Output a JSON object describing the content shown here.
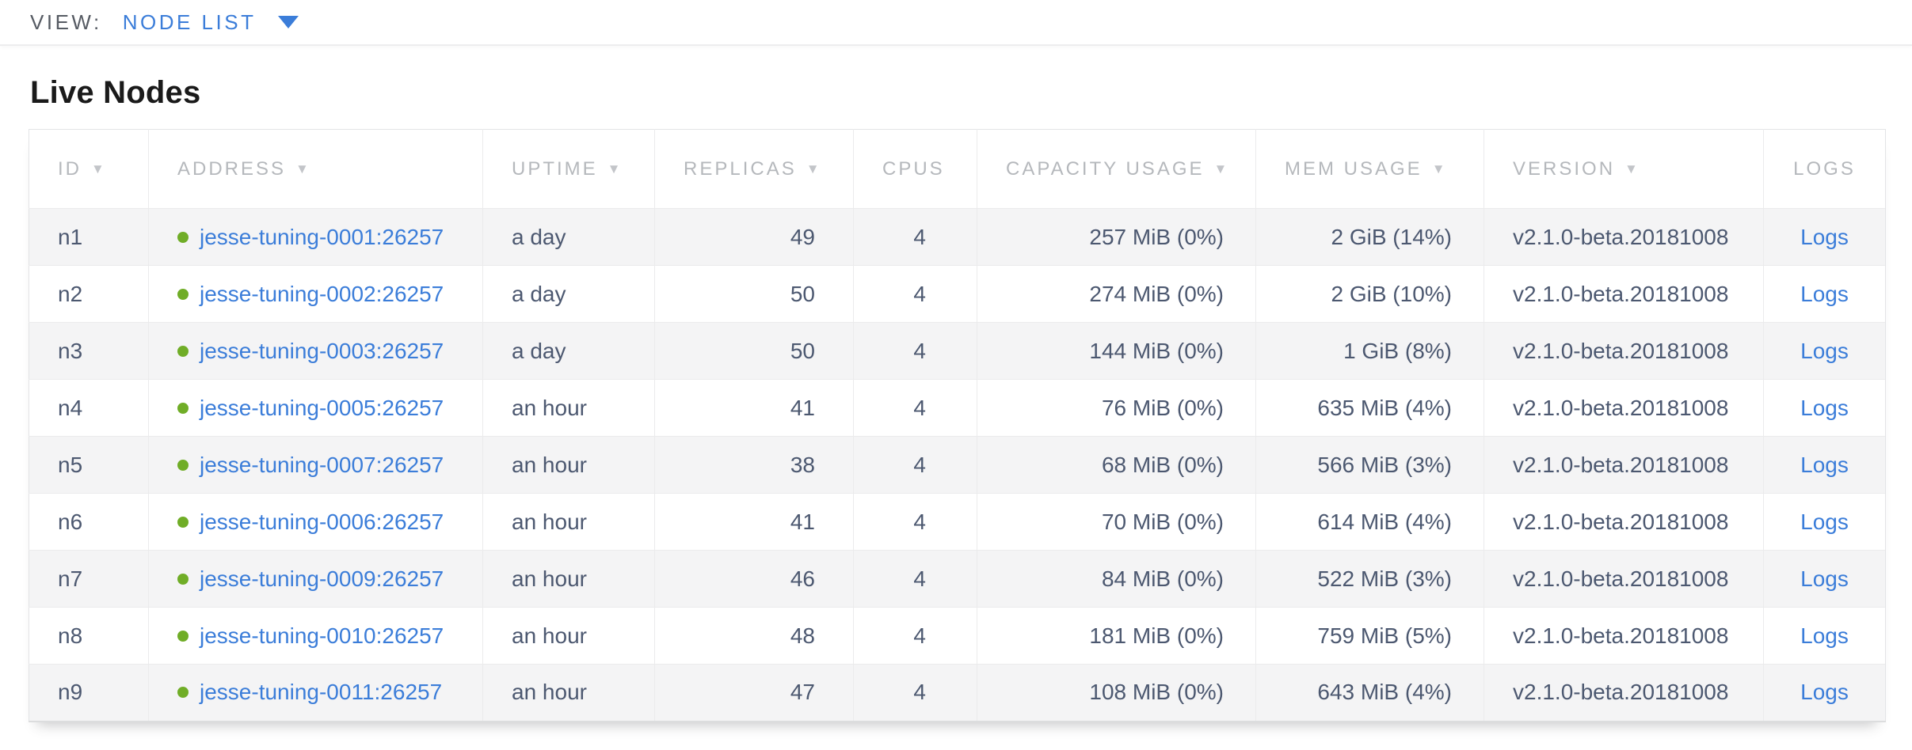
{
  "view_bar": {
    "label": "VIEW:",
    "selected_view": "NODE LIST"
  },
  "page": {
    "title": "Live Nodes"
  },
  "colors": {
    "accent_blue": "#3b7dd9",
    "live_status_green": "#70ad27",
    "cell_text": "#4c5870",
    "header_text": "#b5b8bc"
  },
  "table": {
    "columns": [
      {
        "key": "id",
        "label": "ID",
        "sortable": true
      },
      {
        "key": "address",
        "label": "ADDRESS",
        "sortable": true
      },
      {
        "key": "uptime",
        "label": "UPTIME",
        "sortable": true
      },
      {
        "key": "replicas",
        "label": "REPLICAS",
        "sortable": true
      },
      {
        "key": "cpus",
        "label": "CPUS",
        "sortable": false
      },
      {
        "key": "capacity",
        "label": "CAPACITY USAGE",
        "sortable": true
      },
      {
        "key": "mem_usage",
        "label": "MEM USAGE",
        "sortable": true
      },
      {
        "key": "version",
        "label": "VERSION",
        "sortable": true
      },
      {
        "key": "logs",
        "label": "LOGS",
        "sortable": false
      }
    ],
    "rows": [
      {
        "id": "n1",
        "status": "live",
        "address": "jesse-tuning-0001:26257",
        "uptime": "a day",
        "replicas": "49",
        "cpus": "4",
        "capacity": "257 MiB (0%)",
        "mem_usage": "2 GiB (14%)",
        "version": "v2.1.0-beta.20181008",
        "logs": "Logs"
      },
      {
        "id": "n2",
        "status": "live",
        "address": "jesse-tuning-0002:26257",
        "uptime": "a day",
        "replicas": "50",
        "cpus": "4",
        "capacity": "274 MiB (0%)",
        "mem_usage": "2 GiB (10%)",
        "version": "v2.1.0-beta.20181008",
        "logs": "Logs"
      },
      {
        "id": "n3",
        "status": "live",
        "address": "jesse-tuning-0003:26257",
        "uptime": "a day",
        "replicas": "50",
        "cpus": "4",
        "capacity": "144 MiB (0%)",
        "mem_usage": "1 GiB (8%)",
        "version": "v2.1.0-beta.20181008",
        "logs": "Logs"
      },
      {
        "id": "n4",
        "status": "live",
        "address": "jesse-tuning-0005:26257",
        "uptime": "an hour",
        "replicas": "41",
        "cpus": "4",
        "capacity": "76 MiB (0%)",
        "mem_usage": "635 MiB (4%)",
        "version": "v2.1.0-beta.20181008",
        "logs": "Logs"
      },
      {
        "id": "n5",
        "status": "live",
        "address": "jesse-tuning-0007:26257",
        "uptime": "an hour",
        "replicas": "38",
        "cpus": "4",
        "capacity": "68 MiB (0%)",
        "mem_usage": "566 MiB (3%)",
        "version": "v2.1.0-beta.20181008",
        "logs": "Logs"
      },
      {
        "id": "n6",
        "status": "live",
        "address": "jesse-tuning-0006:26257",
        "uptime": "an hour",
        "replicas": "41",
        "cpus": "4",
        "capacity": "70 MiB (0%)",
        "mem_usage": "614 MiB (4%)",
        "version": "v2.1.0-beta.20181008",
        "logs": "Logs"
      },
      {
        "id": "n7",
        "status": "live",
        "address": "jesse-tuning-0009:26257",
        "uptime": "an hour",
        "replicas": "46",
        "cpus": "4",
        "capacity": "84 MiB (0%)",
        "mem_usage": "522 MiB (3%)",
        "version": "v2.1.0-beta.20181008",
        "logs": "Logs"
      },
      {
        "id": "n8",
        "status": "live",
        "address": "jesse-tuning-0010:26257",
        "uptime": "an hour",
        "replicas": "48",
        "cpus": "4",
        "capacity": "181 MiB (0%)",
        "mem_usage": "759 MiB (5%)",
        "version": "v2.1.0-beta.20181008",
        "logs": "Logs"
      },
      {
        "id": "n9",
        "status": "live",
        "address": "jesse-tuning-0011:26257",
        "uptime": "an hour",
        "replicas": "47",
        "cpus": "4",
        "capacity": "108 MiB (0%)",
        "mem_usage": "643 MiB (4%)",
        "version": "v2.1.0-beta.20181008",
        "logs": "Logs"
      }
    ]
  }
}
